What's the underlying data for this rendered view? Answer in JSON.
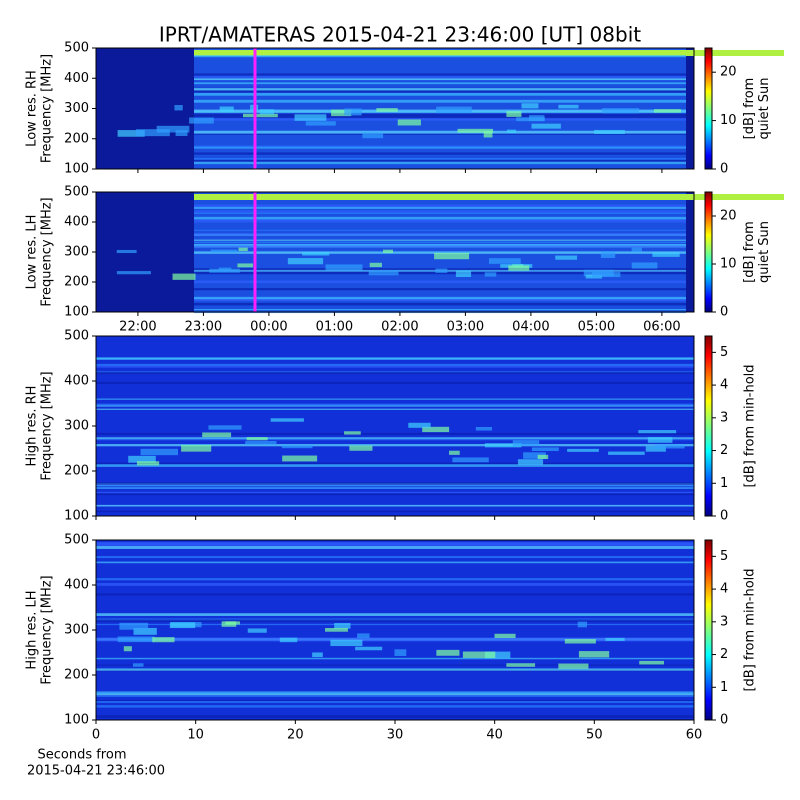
{
  "chart_data": [
    {
      "type": "heatmap",
      "title": "IPRT/AMATERAS 2015-04-21 23:46:00 [UT]   08bit",
      "ylabel": [
        "Low res. RH",
        "Frequency [MHz]"
      ],
      "ylim": [
        100,
        500
      ],
      "yticks": [
        100,
        200,
        300,
        400,
        500
      ],
      "xlim": [
        21.36,
        30.49
      ],
      "colorbar_label": [
        "[dB] from",
        "quiet Sun"
      ],
      "clim": [
        0,
        25
      ],
      "cticks": [
        0,
        10,
        20
      ]
    },
    {
      "type": "heatmap",
      "ylabel": [
        "Low res. LH",
        "Frequency [MHz]"
      ],
      "ylim": [
        100,
        500
      ],
      "yticks": [
        100,
        200,
        300,
        400,
        500
      ],
      "xlim": [
        21.36,
        30.49
      ],
      "xticks": [
        {
          "value": 22,
          "label": "22:00"
        },
        {
          "value": 23,
          "label": "23:00"
        },
        {
          "value": 24,
          "label": "00:00"
        },
        {
          "value": 25,
          "label": "01:00"
        },
        {
          "value": 26,
          "label": "02:00"
        },
        {
          "value": 27,
          "label": "03:00"
        },
        {
          "value": 28,
          "label": "04:00"
        },
        {
          "value": 29,
          "label": "05:00"
        },
        {
          "value": 30,
          "label": "06:00"
        }
      ],
      "colorbar_label": [
        "[dB] from",
        "quiet Sun"
      ],
      "clim": [
        0,
        25
      ],
      "cticks": [
        0,
        10,
        20
      ]
    },
    {
      "type": "heatmap",
      "ylabel": [
        "High res. RH",
        "Frequency [MHz]"
      ],
      "ylim": [
        100,
        500
      ],
      "yticks": [
        100,
        200,
        300,
        400,
        500
      ],
      "xlim": [
        0,
        60
      ],
      "colorbar_label": [
        "[dB] from min-hold"
      ],
      "clim": [
        0,
        5.5
      ],
      "cticks": [
        0,
        1,
        2,
        3,
        4,
        5
      ]
    },
    {
      "type": "heatmap",
      "ylabel": [
        "High res. LH",
        "Frequency [MHz]"
      ],
      "ylim": [
        100,
        500
      ],
      "yticks": [
        100,
        200,
        300,
        400,
        500
      ],
      "xlim": [
        0,
        60
      ],
      "xticks": [
        0,
        10,
        20,
        30,
        40,
        50,
        60
      ],
      "xlabel": [
        "Seconds from",
        "2015-04-21 23:46:00"
      ],
      "colorbar_label": [
        "[dB] from min-hold"
      ],
      "clim": [
        0,
        5.5
      ],
      "cticks": [
        0,
        1,
        2,
        3,
        4,
        5
      ]
    }
  ]
}
